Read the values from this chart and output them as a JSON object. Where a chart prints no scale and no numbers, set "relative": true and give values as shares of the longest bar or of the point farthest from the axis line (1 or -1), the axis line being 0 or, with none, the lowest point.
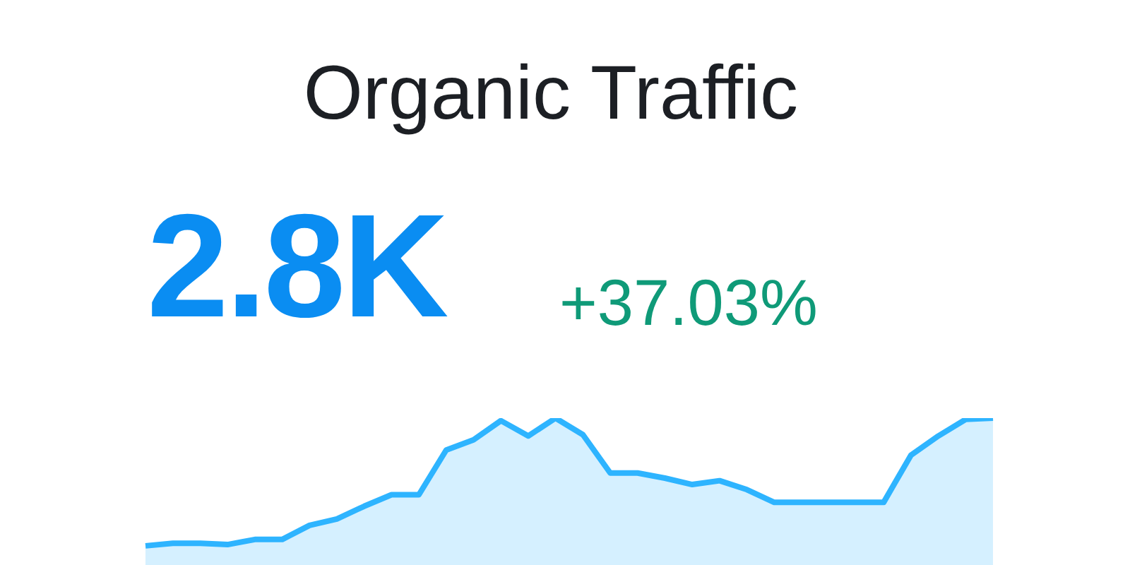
{
  "chart_data": {
    "type": "area",
    "title": "Organic Traffic",
    "annotations": [
      "2.8K",
      "+37.03%"
    ],
    "relative": true,
    "categories": [
      null,
      null,
      null,
      null,
      null,
      null,
      null,
      null,
      null,
      null,
      null,
      null,
      null,
      null,
      null,
      null,
      null,
      null,
      null,
      null,
      null,
      null,
      null,
      null,
      null,
      null,
      null,
      null,
      null,
      null,
      null,
      null
    ],
    "series": [
      {
        "color": "#2eb4ff",
        "values": [
          0,
          0.02,
          0.02,
          0.01,
          0.05,
          0.05,
          0.16,
          0.21,
          0.31,
          0.4,
          0.4,
          0.75,
          0.83,
          0.98,
          0.86,
          1,
          0.87,
          0.57,
          0.57,
          0.53,
          0.48,
          0.51,
          0.44,
          0.34,
          0.34,
          0.34,
          0.34,
          0.34,
          0.71,
          0.86,
          0.99,
          1
        ]
      }
    ],
    "legend": false,
    "marker": "none"
  }
}
